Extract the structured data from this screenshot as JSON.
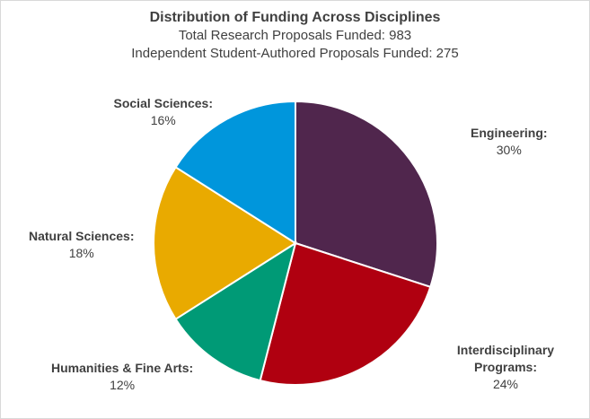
{
  "chart_data": {
    "type": "pie",
    "title": "Distribution of Funding Across Disciplines",
    "subtitles": [
      "Total Research Proposals Funded: 983",
      "Independent  Student-Authored Proposals Funded: 275"
    ],
    "slices": [
      {
        "label": "Engineering:",
        "value": 30,
        "display": "30%",
        "color": "#50264d"
      },
      {
        "label": "Interdisciplinary Programs:",
        "value": 24,
        "display": "24%",
        "color": "#b00010"
      },
      {
        "label": "Humanities & Fine Arts:",
        "value": 12,
        "display": "12%",
        "color": "#009a76"
      },
      {
        "label": "Natural Sciences:",
        "value": 18,
        "display": "18%",
        "color": "#e9aa00"
      },
      {
        "label": "Social Sciences:",
        "value": 16,
        "display": "16%",
        "color": "#0096dc"
      }
    ]
  }
}
